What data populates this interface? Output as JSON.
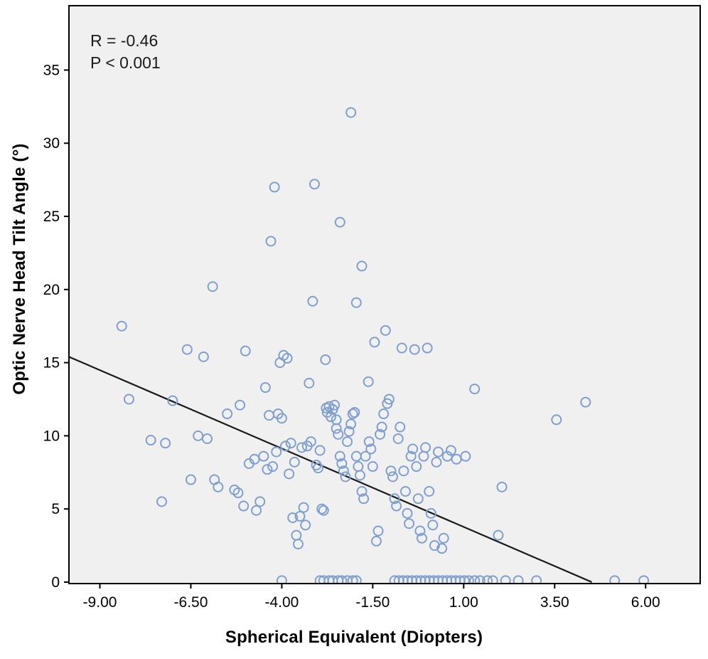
{
  "chart_data": {
    "type": "scatter",
    "title": "",
    "xlabel": "Spherical Equivalent (Diopters)",
    "ylabel": "Optic Nerve Head Tilt Angle (°)",
    "annotation": [
      "R = -0.46",
      "P < 0.001"
    ],
    "correlation": {
      "r": -0.46,
      "p": "< 0.001"
    },
    "x_ticks": {
      "values": [
        -9,
        -6.5,
        -4,
        -1.5,
        1,
        3.5,
        6
      ],
      "labels": [
        "-9.00",
        "-6.50",
        "-4.00",
        "-1.50",
        "1.00",
        "3.50",
        "6.00"
      ]
    },
    "y_ticks": {
      "values": [
        0,
        5,
        10,
        15,
        20,
        25,
        30,
        35
      ],
      "labels": [
        "0",
        "5",
        "10",
        "15",
        "20",
        "25",
        "30",
        "35"
      ]
    },
    "xlim": [
      -9.85,
      7.5
    ],
    "ylim": [
      -0.1,
      39.4
    ],
    "grid": false,
    "legend": "none",
    "regression_line": {
      "x1": -9.85,
      "y1": 15.4,
      "x2": 4.52,
      "y2": 0,
      "color": "#1a1a1a"
    },
    "style": {
      "plot_bg": "#f0f0f0",
      "marker_stroke": "#7fa0cf",
      "border": "#000000",
      "tick_color": "#000000"
    },
    "points": [
      [
        -8.4,
        17.5
      ],
      [
        -8.2,
        12.5
      ],
      [
        -7.6,
        9.7
      ],
      [
        -7.3,
        5.5
      ],
      [
        -7.2,
        9.5
      ],
      [
        -7.0,
        12.4
      ],
      [
        -6.6,
        15.9
      ],
      [
        -6.5,
        7.0
      ],
      [
        -6.3,
        10.0
      ],
      [
        -6.15,
        15.4
      ],
      [
        -6.05,
        9.8
      ],
      [
        -5.9,
        20.2
      ],
      [
        -5.85,
        7.0
      ],
      [
        -5.75,
        6.5
      ],
      [
        -5.5,
        11.5
      ],
      [
        -5.3,
        6.3
      ],
      [
        -5.2,
        6.1
      ],
      [
        -5.15,
        12.1
      ],
      [
        -5.05,
        5.2
      ],
      [
        -5.0,
        15.8
      ],
      [
        -4.9,
        8.1
      ],
      [
        -4.75,
        8.4
      ],
      [
        -4.7,
        4.9
      ],
      [
        -4.6,
        5.5
      ],
      [
        -4.5,
        8.6
      ],
      [
        -4.45,
        13.3
      ],
      [
        -4.4,
        7.7
      ],
      [
        -4.35,
        11.4
      ],
      [
        -4.3,
        23.3
      ],
      [
        -4.2,
        27.0
      ],
      [
        -4.25,
        7.9
      ],
      [
        -4.15,
        8.9
      ],
      [
        -4.1,
        11.5
      ],
      [
        -4.05,
        15.0
      ],
      [
        -4.0,
        11.2
      ],
      [
        -3.95,
        15.5
      ],
      [
        -3.9,
        9.3
      ],
      [
        -3.85,
        15.3
      ],
      [
        -3.8,
        7.4
      ],
      [
        -3.75,
        9.5
      ],
      [
        -3.7,
        4.4
      ],
      [
        -3.65,
        8.2
      ],
      [
        -3.6,
        3.2
      ],
      [
        -3.55,
        2.6
      ],
      [
        -3.5,
        4.5
      ],
      [
        -3.45,
        9.2
      ],
      [
        -3.4,
        5.1
      ],
      [
        -3.35,
        3.9
      ],
      [
        -3.3,
        9.3
      ],
      [
        -3.25,
        13.6
      ],
      [
        -3.2,
        9.6
      ],
      [
        -3.15,
        19.2
      ],
      [
        -3.1,
        27.2
      ],
      [
        -3.05,
        8.0
      ],
      [
        -3.0,
        7.8
      ],
      [
        -2.95,
        9.0
      ],
      [
        -2.9,
        5.0
      ],
      [
        -2.85,
        4.9
      ],
      [
        -2.8,
        15.2
      ],
      [
        -2.78,
        11.9
      ],
      [
        -2.75,
        11.6
      ],
      [
        -2.7,
        12.0
      ],
      [
        -2.65,
        11.3
      ],
      [
        -2.6,
        11.8
      ],
      [
        -2.55,
        12.1
      ],
      [
        -2.5,
        11.1
      ],
      [
        -2.5,
        10.5
      ],
      [
        -2.45,
        10.1
      ],
      [
        -2.4,
        24.6
      ],
      [
        -2.4,
        8.6
      ],
      [
        -2.35,
        8.1
      ],
      [
        -2.3,
        7.6
      ],
      [
        -2.25,
        7.2
      ],
      [
        -2.2,
        9.6
      ],
      [
        -2.15,
        10.3
      ],
      [
        -2.1,
        32.1
      ],
      [
        -2.1,
        10.8
      ],
      [
        -2.05,
        11.5
      ],
      [
        -2.0,
        11.6
      ],
      [
        -1.95,
        19.1
      ],
      [
        -1.95,
        8.6
      ],
      [
        -1.9,
        7.9
      ],
      [
        -1.85,
        7.3
      ],
      [
        -1.8,
        21.6
      ],
      [
        -1.8,
        6.2
      ],
      [
        -1.75,
        5.7
      ],
      [
        -1.7,
        8.6
      ],
      [
        -1.62,
        13.7
      ],
      [
        -1.6,
        9.6
      ],
      [
        -1.55,
        9.1
      ],
      [
        -1.5,
        7.9
      ],
      [
        -1.45,
        16.4
      ],
      [
        -1.4,
        2.8
      ],
      [
        -1.35,
        3.5
      ],
      [
        -1.3,
        10.1
      ],
      [
        -1.25,
        10.6
      ],
      [
        -1.2,
        11.5
      ],
      [
        -1.15,
        17.2
      ],
      [
        -1.1,
        12.2
      ],
      [
        -1.05,
        12.5
      ],
      [
        -1.0,
        7.6
      ],
      [
        -0.95,
        7.2
      ],
      [
        -0.9,
        5.7
      ],
      [
        -0.85,
        5.2
      ],
      [
        -0.8,
        9.8
      ],
      [
        -0.75,
        10.6
      ],
      [
        -0.7,
        16.0
      ],
      [
        -0.65,
        7.6
      ],
      [
        -0.6,
        6.2
      ],
      [
        -0.55,
        4.7
      ],
      [
        -0.5,
        4.0
      ],
      [
        -0.45,
        8.6
      ],
      [
        -0.4,
        9.1
      ],
      [
        -0.35,
        15.9
      ],
      [
        -0.3,
        7.9
      ],
      [
        -0.25,
        5.7
      ],
      [
        -0.2,
        3.5
      ],
      [
        -0.15,
        3.0
      ],
      [
        -0.1,
        8.6
      ],
      [
        -0.05,
        9.2
      ],
      [
        0.0,
        16.0
      ],
      [
        0.05,
        6.2
      ],
      [
        0.1,
        4.7
      ],
      [
        0.15,
        3.9
      ],
      [
        0.2,
        2.5
      ],
      [
        0.25,
        8.2
      ],
      [
        0.3,
        8.9
      ],
      [
        0.4,
        2.3
      ],
      [
        0.45,
        3.0
      ],
      [
        0.55,
        8.6
      ],
      [
        0.65,
        9.0
      ],
      [
        0.8,
        8.4
      ],
      [
        1.05,
        8.6
      ],
      [
        1.3,
        13.2
      ],
      [
        1.95,
        3.2
      ],
      [
        2.05,
        6.5
      ],
      [
        3.55,
        11.1
      ],
      [
        4.35,
        12.3
      ],
      [
        -4.0,
        0.1
      ],
      [
        -2.95,
        0.1
      ],
      [
        -2.85,
        0.1
      ],
      [
        -2.7,
        0.1
      ],
      [
        -2.6,
        0.1
      ],
      [
        -2.45,
        0.1
      ],
      [
        -2.35,
        0.1
      ],
      [
        -2.2,
        0.1
      ],
      [
        -2.05,
        0.1
      ],
      [
        -1.95,
        0.1
      ],
      [
        -0.9,
        0.1
      ],
      [
        -0.78,
        0.1
      ],
      [
        -0.66,
        0.1
      ],
      [
        -0.54,
        0.1
      ],
      [
        -0.42,
        0.1
      ],
      [
        -0.3,
        0.1
      ],
      [
        -0.18,
        0.1
      ],
      [
        -0.06,
        0.1
      ],
      [
        0.06,
        0.1
      ],
      [
        0.18,
        0.1
      ],
      [
        0.3,
        0.1
      ],
      [
        0.42,
        0.1
      ],
      [
        0.54,
        0.1
      ],
      [
        0.66,
        0.1
      ],
      [
        0.78,
        0.1
      ],
      [
        0.9,
        0.1
      ],
      [
        1.02,
        0.1
      ],
      [
        1.14,
        0.1
      ],
      [
        1.3,
        0.1
      ],
      [
        1.45,
        0.1
      ],
      [
        1.65,
        0.1
      ],
      [
        1.8,
        0.1
      ],
      [
        2.15,
        0.1
      ],
      [
        2.5,
        0.1
      ],
      [
        3.0,
        0.1
      ],
      [
        5.15,
        0.1
      ],
      [
        5.95,
        0.1
      ]
    ]
  }
}
